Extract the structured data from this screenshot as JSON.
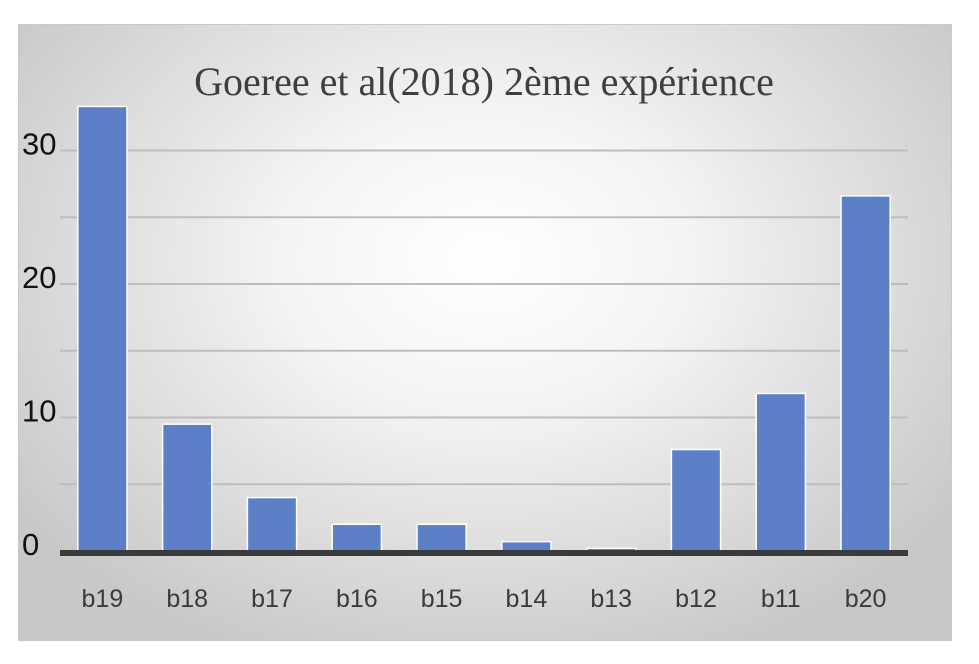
{
  "chart_data": {
    "type": "bar",
    "title": "Goeree et al(2018) 2ème expérience",
    "xlabel": "",
    "ylabel": "",
    "categories": [
      "b19",
      "b18",
      "b17",
      "b16",
      "b15",
      "b14",
      "b13",
      "b12",
      "b11",
      "b20"
    ],
    "values": [
      33.3,
      9.5,
      4.0,
      2.0,
      2.0,
      0.7,
      0.2,
      7.6,
      11.8,
      26.6
    ],
    "ylim": [
      0,
      35
    ],
    "yticks": [
      "0",
      "10",
      "20",
      "30"
    ],
    "grid": true,
    "legend": "none",
    "colors": {
      "bar": "#5b80c8",
      "bar_edge": "#ffffff",
      "grid": "#bdbdbd",
      "axis": "#3a3a3a"
    }
  }
}
